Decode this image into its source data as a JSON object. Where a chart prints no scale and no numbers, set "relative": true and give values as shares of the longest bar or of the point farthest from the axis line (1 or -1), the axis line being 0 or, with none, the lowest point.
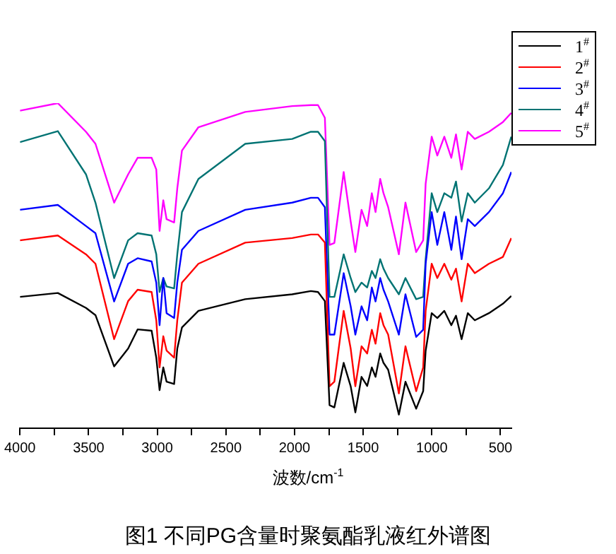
{
  "chart_data": {
    "type": "line",
    "title": "图1 不同PG含量时聚氨酯乳液红外谱图",
    "xlabel": "波数/cm$^{-1}$",
    "relative": true,
    "marker": "none",
    "legend": "top right",
    "xlim": [
      4000,
      420
    ],
    "xticks": [
      4000,
      {
        "value": 3750,
        "label": null
      },
      3500,
      {
        "value": 3250,
        "label": null
      },
      3000,
      {
        "value": 2750,
        "label": null
      },
      2500,
      {
        "value": 2250,
        "label": null
      },
      2000,
      {
        "value": 1750,
        "label": null
      },
      1500,
      {
        "value": 1250,
        "label": null
      },
      1000,
      {
        "value": 750,
        "label": null
      },
      500
    ],
    "x": [
      4000,
      3724,
      3519,
      3450,
      3314,
      3212,
      3143,
      3041,
      3007,
      2983,
      2956,
      2932,
      2877,
      2854,
      2820,
      2700,
      2359,
      2017,
      1881,
      1829,
      1779,
      1745,
      1710,
      1642,
      1591,
      1557,
      1512,
      1471,
      1437,
      1410,
      1376,
      1352,
      1318,
      1240,
      1192,
      1114,
      1063,
      1045,
      1001,
      960,
      909,
      858,
      824,
      783,
      738,
      687,
      584,
      482,
      421
    ],
    "series": [
      {
        "name": "1$^{#}$",
        "color": "#000000",
        "values": [
          0.404,
          0.416,
          0.37,
          0.348,
          0.19,
          0.245,
          0.304,
          0.3,
          0.217,
          0.117,
          0.187,
          0.143,
          0.136,
          0.245,
          0.31,
          0.361,
          0.397,
          0.412,
          0.422,
          0.419,
          0.391,
          0.071,
          0.064,
          0.201,
          0.129,
          0.049,
          0.158,
          0.13,
          0.187,
          0.158,
          0.23,
          0.201,
          0.18,
          0.042,
          0.143,
          0.06,
          0.114,
          0.238,
          0.354,
          0.339,
          0.361,
          0.317,
          0.346,
          0.274,
          0.354,
          0.332,
          0.354,
          0.383,
          0.407
        ]
      },
      {
        "name": "2$^{#}$",
        "color": "#ff0000",
        "values": [
          0.578,
          0.593,
          0.535,
          0.506,
          0.274,
          0.391,
          0.426,
          0.419,
          0.332,
          0.187,
          0.283,
          0.239,
          0.217,
          0.332,
          0.448,
          0.506,
          0.571,
          0.585,
          0.596,
          0.596,
          0.571,
          0.129,
          0.143,
          0.361,
          0.245,
          0.129,
          0.252,
          0.23,
          0.303,
          0.26,
          0.354,
          0.317,
          0.288,
          0.107,
          0.252,
          0.114,
          0.187,
          0.361,
          0.506,
          0.462,
          0.506,
          0.457,
          0.491,
          0.39,
          0.506,
          0.477,
          0.506,
          0.527,
          0.585
        ]
      },
      {
        "name": "3$^{#}$",
        "color": "#0000ff",
        "values": [
          0.672,
          0.687,
          0.622,
          0.6,
          0.39,
          0.506,
          0.523,
          0.513,
          0.448,
          0.317,
          0.462,
          0.354,
          0.339,
          0.448,
          0.549,
          0.607,
          0.672,
          0.694,
          0.709,
          0.709,
          0.68,
          0.288,
          0.288,
          0.477,
          0.375,
          0.288,
          0.375,
          0.332,
          0.433,
          0.39,
          0.462,
          0.426,
          0.39,
          0.288,
          0.412,
          0.281,
          0.303,
          0.506,
          0.665,
          0.564,
          0.665,
          0.549,
          0.651,
          0.52,
          0.643,
          0.622,
          0.665,
          0.723,
          0.788
        ]
      },
      {
        "name": "4$^{#}$",
        "color": "#007373",
        "values": [
          0.88,
          0.914,
          0.781,
          0.694,
          0.462,
          0.578,
          0.6,
          0.593,
          0.535,
          0.419,
          0.462,
          0.436,
          0.43,
          0.535,
          0.665,
          0.767,
          0.875,
          0.89,
          0.912,
          0.912,
          0.883,
          0.404,
          0.404,
          0.535,
          0.462,
          0.419,
          0.448,
          0.433,
          0.484,
          0.462,
          0.52,
          0.491,
          0.462,
          0.412,
          0.462,
          0.397,
          0.404,
          0.52,
          0.723,
          0.665,
          0.723,
          0.709,
          0.759,
          0.636,
          0.723,
          0.694,
          0.738,
          0.81,
          0.897
        ]
      },
      {
        "name": "5$^{#}$",
        "color": "#ff00ff",
        "values": [
          0.977,
          1.0,
          0.912,
          0.875,
          0.694,
          0.781,
          0.832,
          0.832,
          0.796,
          0.607,
          0.701,
          0.643,
          0.633,
          0.738,
          0.854,
          0.926,
          0.973,
          0.991,
          0.994,
          0.994,
          0.955,
          0.564,
          0.57,
          0.788,
          0.636,
          0.542,
          0.672,
          0.622,
          0.723,
          0.665,
          0.767,
          0.723,
          0.68,
          0.535,
          0.694,
          0.542,
          0.578,
          0.752,
          0.897,
          0.839,
          0.897,
          0.832,
          0.904,
          0.796,
          0.912,
          0.89,
          0.912,
          0.942,
          0.97
        ]
      }
    ]
  }
}
